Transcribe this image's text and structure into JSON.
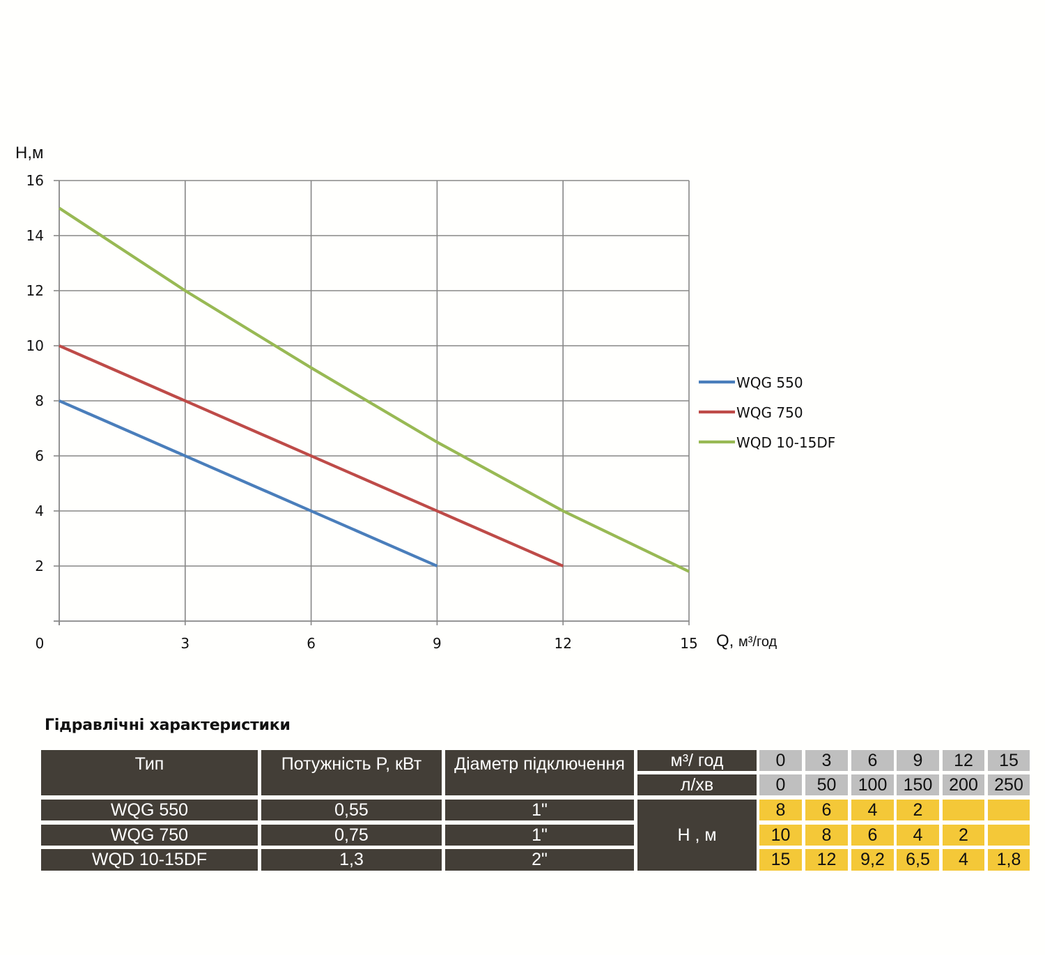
{
  "chart_data": {
    "type": "line",
    "ylabel": "H,м",
    "xlabel": "Q,",
    "xlabel_unit": "м³/год",
    "xlim": [
      0,
      15
    ],
    "ylim": [
      0,
      16
    ],
    "xticks": [
      0,
      3,
      6,
      9,
      12,
      15
    ],
    "yticks": [
      2,
      4,
      6,
      8,
      10,
      12,
      14,
      16
    ],
    "grid": true,
    "legend_position": "right",
    "series": [
      {
        "name": "WQG 550",
        "color": "#4a7ebb",
        "x": [
          0,
          3,
          6,
          9
        ],
        "y": [
          8,
          6,
          4,
          2
        ]
      },
      {
        "name": "WQG 750",
        "color": "#be4b48",
        "x": [
          0,
          3,
          6,
          9,
          12
        ],
        "y": [
          10,
          8,
          6,
          4,
          2
        ]
      },
      {
        "name": "WQD 10-15DF",
        "color": "#98b954",
        "x": [
          0,
          3,
          6,
          9,
          12,
          15
        ],
        "y": [
          15,
          12,
          9.2,
          6.5,
          4,
          1.8
        ]
      }
    ]
  },
  "table": {
    "title": "Гідравлічні характеристики",
    "headers": {
      "type": "Тип",
      "power": "Потужність  P,  кВт",
      "diameter": "Діаметр підключення",
      "flow_m3_unit": "м³/ год",
      "flow_l_unit": "л/хв",
      "head_unit": "H , м"
    },
    "flow_m3": [
      "0",
      "3",
      "6",
      "9",
      "12",
      "15"
    ],
    "flow_l": [
      "0",
      "50",
      "100",
      "150",
      "200",
      "250"
    ],
    "rows": [
      {
        "type": "WQG 550",
        "power": "0,55",
        "diameter": "1\"",
        "heads": [
          "8",
          "6",
          "4",
          "2",
          "",
          ""
        ]
      },
      {
        "type": "WQG 750",
        "power": "0,75",
        "diameter": "1\"",
        "heads": [
          "10",
          "8",
          "6",
          "4",
          "2",
          ""
        ]
      },
      {
        "type": "WQD 10-15DF",
        "power": "1,3",
        "diameter": "2\"",
        "heads": [
          "15",
          "12",
          "9,2",
          "6,5",
          "4",
          "1,8"
        ]
      }
    ]
  }
}
